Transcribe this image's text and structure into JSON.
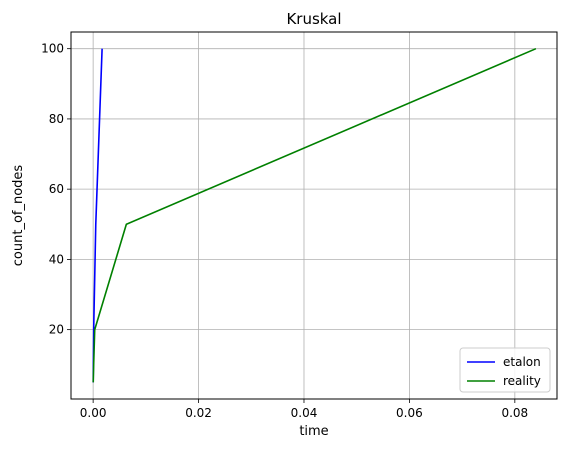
{
  "chart_data": {
    "type": "line",
    "title": "Kruskal",
    "xlabel": "time",
    "ylabel": "count_of_nodes",
    "xlim": [
      -0.0042,
      0.088
    ],
    "ylim": [
      0.25,
      104.75
    ],
    "xticks": [
      0.0,
      0.02,
      0.04,
      0.06,
      0.08
    ],
    "xtick_labels": [
      "0.00",
      "0.02",
      "0.04",
      "0.06",
      "0.08"
    ],
    "yticks": [
      20,
      40,
      60,
      80,
      100
    ],
    "ytick_labels": [
      "20",
      "40",
      "60",
      "80",
      "100"
    ],
    "grid": true,
    "legend_position": "lower-right",
    "series": [
      {
        "name": "etalon",
        "color": "#0000ff",
        "x": [
          1e-05,
          4e-05,
          0.0001,
          0.0005,
          0.0017
        ],
        "y": [
          5,
          10,
          20,
          50,
          100
        ]
      },
      {
        "name": "reality",
        "color": "#008000",
        "x": [
          2e-05,
          0.0001,
          0.0003,
          0.0063,
          0.084
        ],
        "y": [
          5,
          10,
          20,
          50,
          100
        ]
      }
    ]
  }
}
